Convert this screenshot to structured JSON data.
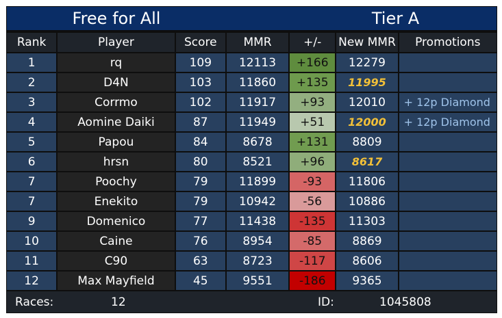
{
  "title": {
    "mode": "Free for All",
    "tier": "Tier A"
  },
  "columns": [
    "Rank",
    "Player",
    "Score",
    "MMR",
    "+/-",
    "New MMR",
    "Promotions"
  ],
  "rows": [
    {
      "rank": "1",
      "player": "rq",
      "score": "109",
      "mmr": "12113",
      "delta": "+166",
      "delta_color": "#5f8c3e",
      "new_mmr": "12279",
      "new_mmr_highlight": false,
      "promotion": ""
    },
    {
      "rank": "2",
      "player": "D4N",
      "score": "103",
      "mmr": "11860",
      "delta": "+135",
      "delta_color": "#6e9a4d",
      "new_mmr": "11995",
      "new_mmr_highlight": true,
      "promotion": ""
    },
    {
      "rank": "3",
      "player": "Corrmo",
      "score": "102",
      "mmr": "11917",
      "delta": "+93",
      "delta_color": "#93af80",
      "new_mmr": "12010",
      "new_mmr_highlight": false,
      "promotion": "+ 12p Diamond"
    },
    {
      "rank": "4",
      "player": "Aomine Daiki",
      "score": "87",
      "mmr": "11949",
      "delta": "+51",
      "delta_color": "#b8c8ae",
      "new_mmr": "12000",
      "new_mmr_highlight": true,
      "promotion": "+ 12p Diamond"
    },
    {
      "rank": "5",
      "player": "Papou",
      "score": "84",
      "mmr": "8678",
      "delta": "+131",
      "delta_color": "#719c50",
      "new_mmr": "8809",
      "new_mmr_highlight": false,
      "promotion": ""
    },
    {
      "rank": "6",
      "player": "hrsn",
      "score": "80",
      "mmr": "8521",
      "delta": "+96",
      "delta_color": "#8fad7a",
      "new_mmr": "8617",
      "new_mmr_highlight": true,
      "promotion": ""
    },
    {
      "rank": "7",
      "player": "Poochy",
      "score": "79",
      "mmr": "11899",
      "delta": "-93",
      "delta_color": "#d56565",
      "new_mmr": "11806",
      "new_mmr_highlight": false,
      "promotion": ""
    },
    {
      "rank": "7",
      "player": "Enekito",
      "score": "79",
      "mmr": "10942",
      "delta": "-56",
      "delta_color": "#d99a9a",
      "new_mmr": "10886",
      "new_mmr_highlight": false,
      "promotion": ""
    },
    {
      "rank": "9",
      "player": "Domenico",
      "score": "77",
      "mmr": "11438",
      "delta": "-135",
      "delta_color": "#ce3535",
      "new_mmr": "11303",
      "new_mmr_highlight": false,
      "promotion": ""
    },
    {
      "rank": "10",
      "player": "Caine",
      "score": "76",
      "mmr": "8954",
      "delta": "-85",
      "delta_color": "#d46a6a",
      "new_mmr": "8869",
      "new_mmr_highlight": false,
      "promotion": ""
    },
    {
      "rank": "11",
      "player": "C90",
      "score": "63",
      "mmr": "8723",
      "delta": "-117",
      "delta_color": "#cf4646",
      "new_mmr": "8606",
      "new_mmr_highlight": false,
      "promotion": ""
    },
    {
      "rank": "12",
      "player": "Max Mayfield",
      "score": "45",
      "mmr": "9551",
      "delta": "-186",
      "delta_color": "#c20000",
      "new_mmr": "9365",
      "new_mmr_highlight": false,
      "promotion": ""
    }
  ],
  "footer": {
    "races_label": "Races:",
    "races_value": "12",
    "id_label": "ID:",
    "id_value": "1045808"
  },
  "colors": {
    "title_bg": "#0a2d66",
    "header_bg": "#1f242b",
    "cell_bg": "#28405f",
    "player_bg": "#232323",
    "highlight": "#f2c038",
    "promotion": "#9fc3ea"
  }
}
